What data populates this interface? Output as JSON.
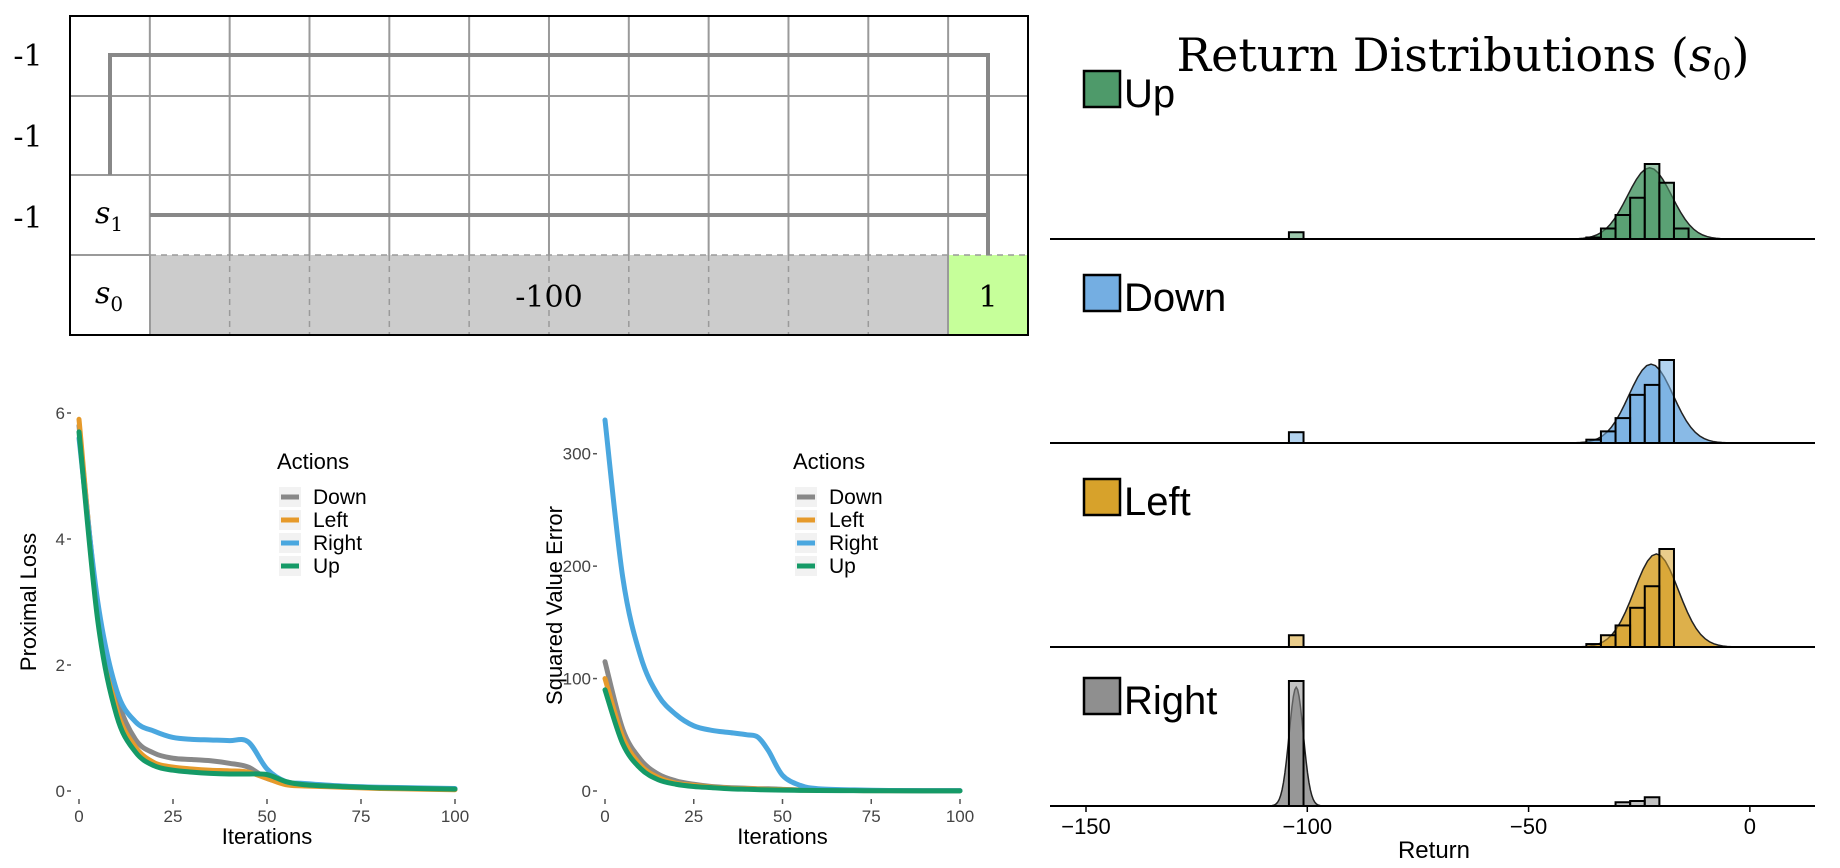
{
  "gridworld": {
    "row_rewards": [
      "-1",
      "-1",
      "-1"
    ],
    "state_labels": [
      "s1",
      "s0"
    ],
    "cliff_label": "-100",
    "goal_label": "1",
    "colors": {
      "cliff": "#cccccc",
      "goal": "#c6ff9a",
      "path": "#888888",
      "grid": "#9a9a9a"
    }
  },
  "chart_data": [
    {
      "type": "line",
      "xlabel": "Iterations",
      "ylabel": "Proximal Loss",
      "xlim": [
        0,
        100
      ],
      "ylim": [
        0,
        6
      ],
      "x_ticks": [
        0,
        25,
        50,
        75,
        100
      ],
      "y_ticks": [
        0,
        2,
        4,
        6
      ],
      "grid": false,
      "legend": {
        "title": "Actions",
        "placement": "top-right"
      },
      "x": [
        0,
        5,
        10,
        15,
        20,
        25,
        30,
        35,
        40,
        45,
        50,
        55,
        60,
        70,
        80,
        90,
        100
      ],
      "series": [
        {
          "name": "Down",
          "color": "#888888",
          "values": [
            5.8,
            2.9,
            1.5,
            0.82,
            0.6,
            0.52,
            0.5,
            0.48,
            0.44,
            0.38,
            0.2,
            0.13,
            0.1,
            0.07,
            0.05,
            0.04,
            0.03
          ]
        },
        {
          "name": "Left",
          "color": "#e69a2b",
          "values": [
            5.9,
            2.8,
            1.3,
            0.7,
            0.45,
            0.38,
            0.35,
            0.33,
            0.32,
            0.3,
            0.2,
            0.1,
            0.08,
            0.06,
            0.04,
            0.03,
            0.02
          ]
        },
        {
          "name": "Right",
          "color": "#4aa7df",
          "values": [
            5.6,
            3.0,
            1.6,
            1.1,
            0.95,
            0.85,
            0.82,
            0.81,
            0.8,
            0.78,
            0.35,
            0.15,
            0.12,
            0.08,
            0.06,
            0.05,
            0.04
          ]
        },
        {
          "name": "Up",
          "color": "#159a67",
          "values": [
            5.7,
            2.7,
            1.2,
            0.62,
            0.4,
            0.33,
            0.3,
            0.28,
            0.27,
            0.27,
            0.26,
            0.15,
            0.1,
            0.07,
            0.05,
            0.04,
            0.03
          ]
        }
      ]
    },
    {
      "type": "line",
      "xlabel": "Iterations",
      "ylabel": "Squared Value Error",
      "xlim": [
        0,
        100
      ],
      "ylim": [
        0,
        330
      ],
      "x_ticks": [
        0,
        25,
        50,
        75,
        100
      ],
      "y_ticks": [
        0,
        100,
        200,
        300
      ],
      "grid": false,
      "legend": {
        "title": "Actions",
        "placement": "top-right"
      },
      "x": [
        0,
        5,
        10,
        15,
        20,
        25,
        30,
        35,
        40,
        43,
        46,
        50,
        55,
        60,
        70,
        80,
        100
      ],
      "series": [
        {
          "name": "Down",
          "color": "#888888",
          "values": [
            115,
            55,
            28,
            15,
            9,
            6,
            4,
            3,
            2.5,
            2,
            2,
            1.5,
            1,
            1,
            0.5,
            0.3,
            0.2
          ]
        },
        {
          "name": "Left",
          "color": "#e69a2b",
          "values": [
            100,
            48,
            23,
            12,
            7,
            5,
            3.5,
            2.5,
            2,
            1.8,
            1.5,
            1.2,
            0.8,
            0.6,
            0.4,
            0.3,
            0.2
          ]
        },
        {
          "name": "Right",
          "color": "#4aa7df",
          "values": [
            330,
            190,
            120,
            85,
            68,
            58,
            54,
            52,
            50,
            48,
            36,
            14,
            5,
            2,
            1,
            0.5,
            0.3
          ]
        },
        {
          "name": "Up",
          "color": "#159a67",
          "values": [
            90,
            42,
            20,
            10,
            6,
            4,
            3,
            2,
            1.5,
            1.2,
            1,
            0.8,
            0.6,
            0.5,
            0.3,
            0.2,
            0.1
          ]
        }
      ]
    },
    {
      "type": "histogram",
      "title": "Return Distributions (s0)",
      "xlabel": "Return",
      "xlim": [
        -150,
        5
      ],
      "x_ticks": [
        -150,
        -100,
        -50,
        0
      ],
      "x_tick_labels": [
        "−150",
        "−100",
        "−50",
        "0"
      ],
      "bin_width": 3.3,
      "panels": [
        {
          "name": "Up",
          "color": "#4e9a6a",
          "bins": [
            {
              "x": -102.5,
              "h": 0.09
            },
            {
              "x": -35.3,
              "h": 0.02
            },
            {
              "x": -32,
              "h": 0.14
            },
            {
              "x": -28.7,
              "h": 0.32
            },
            {
              "x": -25.4,
              "h": 0.55
            },
            {
              "x": -22.1,
              "h": 1.0
            },
            {
              "x": -18.8,
              "h": 0.75
            },
            {
              "x": -15.5,
              "h": 0.14
            }
          ]
        },
        {
          "name": "Down",
          "color": "#74aee2",
          "bins": [
            {
              "x": -102.5,
              "h": 0.13
            },
            {
              "x": -35.3,
              "h": 0.04
            },
            {
              "x": -32,
              "h": 0.14
            },
            {
              "x": -28.7,
              "h": 0.3
            },
            {
              "x": -25.4,
              "h": 0.58
            },
            {
              "x": -22.1,
              "h": 0.7
            },
            {
              "x": -18.8,
              "h": 1.0
            }
          ]
        },
        {
          "name": "Left",
          "color": "#d7a22b",
          "bins": [
            {
              "x": -102.5,
              "h": 0.12
            },
            {
              "x": -35.3,
              "h": 0.03
            },
            {
              "x": -32,
              "h": 0.12
            },
            {
              "x": -28.7,
              "h": 0.22
            },
            {
              "x": -25.4,
              "h": 0.4
            },
            {
              "x": -22.1,
              "h": 0.62
            },
            {
              "x": -18.8,
              "h": 1.0
            }
          ]
        },
        {
          "name": "Right",
          "color": "#8f8f8f",
          "bins": [
            {
              "x": -102.5,
              "h": 1.0
            },
            {
              "x": -28.7,
              "h": 0.03
            },
            {
              "x": -25.4,
              "h": 0.04
            },
            {
              "x": -22.1,
              "h": 0.07
            }
          ]
        }
      ]
    }
  ]
}
